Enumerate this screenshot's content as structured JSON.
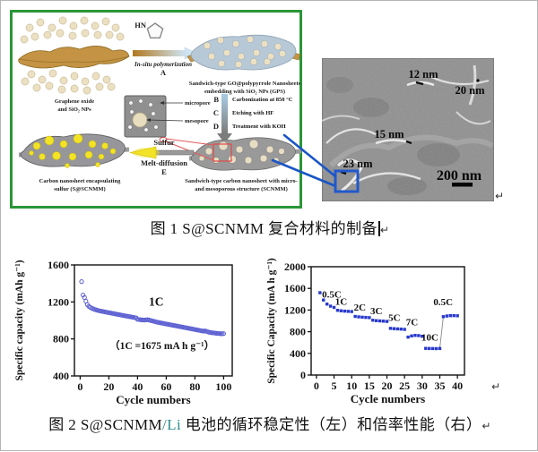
{
  "colors": {
    "green_border": "#2a9637",
    "left_marker_blue": "#5a5ed0",
    "right_marker_blue": "#2838cc",
    "connector_blue": "#1a56c6",
    "sem_highlight_blue": "#2258cc",
    "sulfur_yellow": "#f3e326",
    "red_callout": "#e04848",
    "li_text_teal": "#2e8b8b"
  },
  "schematic": {
    "go_line1": "Graphene oxide",
    "go_line2": "and SiO₂ NPs",
    "pyrrole_label": "HN",
    "arrow_a_label": "In-situ polymerization",
    "arrow_a_letter": "A",
    "gps_line1": "Sandwich-type GO@polypyrrole Nanosheets",
    "gps_line2": "embedding with SiO₂ NPs (GPS)",
    "micropore_label": "micropore",
    "mesopore_label": "mesopore",
    "step_b_letter": "B",
    "step_b_text": "Carbonization at 850 °C",
    "step_c_letter": "C",
    "step_c_text": "Etching with HF",
    "step_d_letter": "D",
    "step_d_text": "Treatment with KOH",
    "sulfur_label": "Sulfur",
    "melt_label": "Melt-diffusion",
    "arrow_e_letter": "E",
    "scnmm_line1": "Sandwich-type carbon nanosheet with micro-",
    "scnmm_line2": "and mesoporous structure (SCNMM)",
    "s_scnmm_line1": "Carbon nanosheet encapsulating",
    "s_scnmm_line2": "sulfur  (S@SCNMM)"
  },
  "sem": {
    "labels": [
      {
        "text": "12 nm"
      },
      {
        "text": "20 nm"
      },
      {
        "text": "15 nm"
      },
      {
        "text": "23 nm"
      }
    ],
    "scale_label": "200 nm"
  },
  "caption1": {
    "text": "图 1 S@SCNMM 复合材料的制备"
  },
  "caption2": {
    "prefix": "图 2 S@SCNMM",
    "li": "/Li",
    "rest": " 电池的循环稳定性（左）和倍率性能（右）"
  },
  "return_mark": "↵",
  "chart_data": [
    {
      "type": "scatter",
      "marker": "open-circle",
      "color": "#5a5ed0",
      "xlabel": "Cycle numbers",
      "ylabel": "Specific capacity (mAh g⁻¹)",
      "xlim": [
        -4,
        106
      ],
      "ylim": [
        400,
        1600
      ],
      "xticks": [
        0,
        20,
        40,
        60,
        80,
        100
      ],
      "yticks": [
        400,
        800,
        1200,
        1600
      ],
      "grid": false,
      "legend": "none",
      "x_start": 1,
      "x_meaning": "cycle number 1-100",
      "values": [
        1420,
        1275,
        1248,
        1208,
        1172,
        1152,
        1142,
        1133,
        1126,
        1120,
        1115,
        1110,
        1106,
        1102,
        1099,
        1096,
        1093,
        1090,
        1087,
        1084,
        1081,
        1078,
        1075,
        1072,
        1069,
        1066,
        1063,
        1060,
        1057,
        1054,
        1051,
        1048,
        1045,
        1042,
        1040,
        1037,
        1034,
        1031,
        1028,
        1012,
        1010,
        1008,
        1006,
        1005,
        1004,
        1006,
        1009,
        1005,
        1000,
        996,
        992,
        988,
        984,
        980,
        977,
        974,
        971,
        968,
        965,
        962,
        959,
        956,
        953,
        950,
        947,
        944,
        941,
        938,
        935,
        932,
        929,
        926,
        923,
        920,
        917,
        914,
        911,
        908,
        905,
        902,
        899,
        896,
        893,
        890,
        887,
        884,
        888,
        882,
        877,
        872,
        869,
        867,
        865,
        863,
        861,
        859,
        858,
        857,
        856,
        858
      ],
      "annotations": [
        {
          "text": "1C",
          "x": 53,
          "y": 1160,
          "size": 13.5
        },
        {
          "text": "（1C =1675 mA h g⁻¹）",
          "x": 57,
          "y": 688,
          "size": 11.5
        }
      ]
    },
    {
      "type": "scatter",
      "marker": "square",
      "color": "#2838cc",
      "xlabel": "Cycle numbers",
      "ylabel": "Specific Capacity (mA h g⁻¹)",
      "xlim": [
        -1.5,
        42
      ],
      "ylim": [
        0,
        2000
      ],
      "xticks": [
        0,
        5,
        10,
        15,
        20,
        25,
        30,
        35,
        40
      ],
      "yticks": [
        0,
        400,
        800,
        1200,
        1600,
        2000
      ],
      "grid": false,
      "legend": "none",
      "segments": [
        {
          "rate": "0.5C",
          "cycles": [
            1,
            2,
            3,
            4,
            5
          ],
          "values": [
            1520,
            1385,
            1310,
            1272,
            1248
          ]
        },
        {
          "rate": "1C",
          "cycles": [
            6,
            7,
            8,
            9,
            10
          ],
          "values": [
            1195,
            1186,
            1180,
            1176,
            1172
          ]
        },
        {
          "rate": "2C",
          "cycles": [
            11,
            12,
            13,
            14,
            15
          ],
          "values": [
            1082,
            1074,
            1068,
            1064,
            1060
          ]
        },
        {
          "rate": "3C",
          "cycles": [
            16,
            17,
            18,
            19,
            20
          ],
          "values": [
            1012,
            1004,
            999,
            995,
            990
          ]
        },
        {
          "rate": "5C",
          "cycles": [
            21,
            22,
            23,
            24,
            25
          ],
          "values": [
            862,
            856,
            852,
            848,
            843
          ]
        },
        {
          "rate": "7C",
          "cycles": [
            26,
            27,
            28,
            29,
            30
          ],
          "values": [
            700,
            722,
            732,
            728,
            716
          ]
        },
        {
          "rate": "10C",
          "cycles": [
            31,
            32,
            33,
            34,
            35
          ],
          "values": [
            492,
            490,
            489,
            488,
            490
          ]
        },
        {
          "rate": "0.5C",
          "cycles": [
            36,
            37,
            38,
            39,
            40
          ],
          "values": [
            1078,
            1090,
            1096,
            1097,
            1094
          ]
        }
      ],
      "connector": {
        "from_cycle": 35,
        "to_cycle": 36
      },
      "rate_labels": [
        {
          "text": "0.5C",
          "x": 1.6,
          "y": 1430
        },
        {
          "text": "1C",
          "x": 5.3,
          "y": 1300
        },
        {
          "text": "2C",
          "x": 10.6,
          "y": 1190
        },
        {
          "text": "3C",
          "x": 15.3,
          "y": 1120
        },
        {
          "text": "5C",
          "x": 20.4,
          "y": 1000
        },
        {
          "text": "7C",
          "x": 25.4,
          "y": 920
        },
        {
          "text": "10C",
          "x": 29.8,
          "y": 640
        },
        {
          "text": "0.5C",
          "x": 33.2,
          "y": 1290
        }
      ]
    }
  ]
}
